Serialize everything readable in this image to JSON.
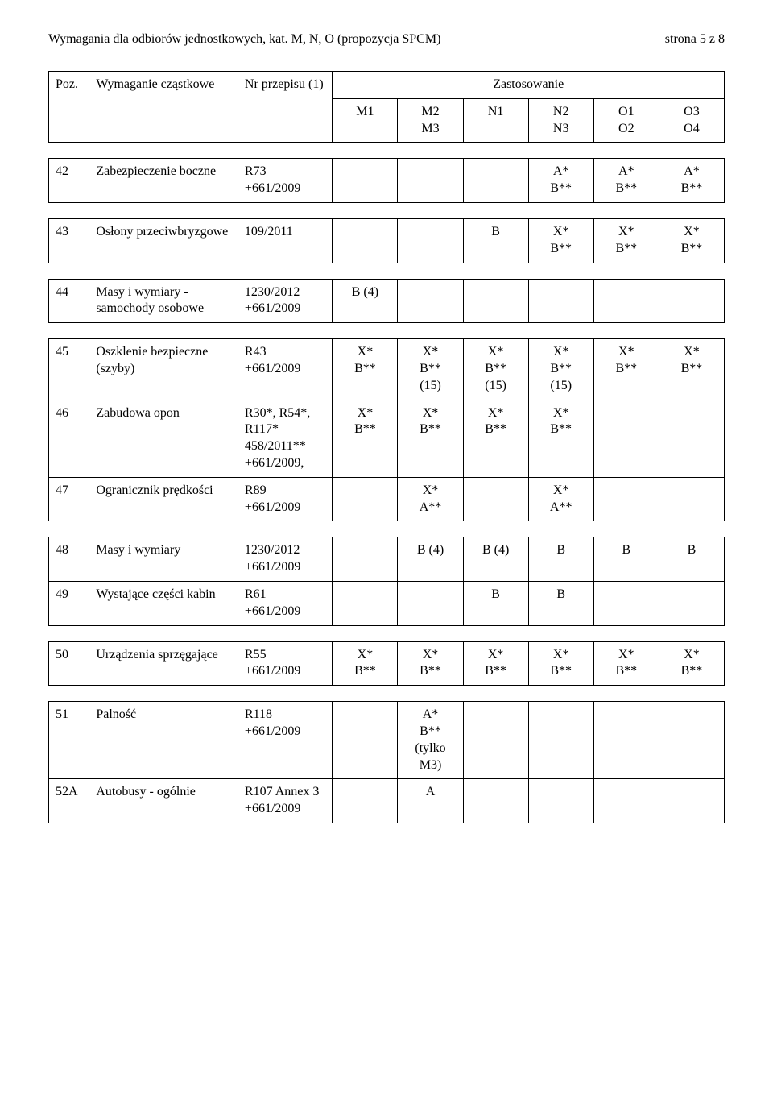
{
  "doc_header": {
    "left": "Wymagania dla odbiorów jednostkowych, kat. M, N, O (propozycja SPCM)",
    "right": "strona 5 z 8"
  },
  "thead": {
    "zast": "Zastosowanie",
    "poz": "Poz.",
    "wym": "Wymaganie cząstkowe",
    "nr": "Nr przepisu (1)",
    "m1": "M1",
    "m2m3": "M2\nM3",
    "n1": "N1",
    "n2n3": "N2\nN3",
    "o1o2": "O1\nO2",
    "o3o4": "O3\nO4"
  },
  "rows": {
    "r42": {
      "poz": "42",
      "wym": "Zabezpieczenie boczne",
      "nr": "R73\n+661/2009",
      "n2n3": "A*\nB**",
      "o1o2": "A*\nB**",
      "o3o4": "A*\nB**"
    },
    "r43": {
      "poz": "43",
      "wym": "Osłony przeciwbryzgowe",
      "nr": "109/2011",
      "n1": "B",
      "n2n3": "X*\nB**",
      "o1o2": "X*\nB**",
      "o3o4": "X*\nB**"
    },
    "r44": {
      "poz": "44",
      "wym": "Masy i wymiary - samochody osobowe",
      "nr": "1230/2012\n+661/2009",
      "m1": "B (4)"
    },
    "r45": {
      "poz": "45",
      "wym": "Oszklenie bezpieczne (szyby)",
      "nr": "R43\n+661/2009",
      "m1": "X*\nB**",
      "m2m3": "X*\nB**\n(15)",
      "n1": "X*\nB**\n(15)",
      "n2n3": "X*\nB**\n(15)",
      "o1o2": "X*\nB**",
      "o3o4": "X*\nB**"
    },
    "r46": {
      "poz": "46",
      "wym": "Zabudowa opon",
      "nr": "R30*, R54*, R117*\n458/2011**\n+661/2009,",
      "m1": "X*\nB**",
      "m2m3": "X*\nB**",
      "n1": "X*\nB**",
      "n2n3": "X*\nB**"
    },
    "r47": {
      "poz": "47",
      "wym": "Ogranicznik prędkości",
      "nr": "R89\n+661/2009",
      "m2m3": "X*\nA**",
      "n2n3": "X*\nA**"
    },
    "r48": {
      "poz": "48",
      "wym": "Masy i wymiary",
      "nr": "1230/2012\n+661/2009",
      "m2m3": "B (4)",
      "n1": "B (4)",
      "n2n3": "B",
      "o1o2": "B",
      "o3o4": "B"
    },
    "r49": {
      "poz": "49",
      "wym": "Wystające części kabin",
      "nr": "R61\n+661/2009",
      "n1": "B",
      "n2n3": "B"
    },
    "r50": {
      "poz": "50",
      "wym": "Urządzenia sprzęgające",
      "nr": "R55\n+661/2009",
      "m1": "X*\nB**",
      "m2m3": "X*\nB**",
      "n1": "X*\nB**",
      "n2n3": "X*\nB**",
      "o1o2": "X*\nB**",
      "o3o4": "X*\nB**"
    },
    "r51": {
      "poz": "51",
      "wym": "Palność",
      "nr": "R118\n+661/2009",
      "m2m3": "A*\nB**\n(tylko M3)"
    },
    "r52a": {
      "poz": "52A",
      "wym": "Autobusy - ogólnie",
      "nr": "R107 Annex 3\n+661/2009",
      "m2m3": "A"
    }
  }
}
